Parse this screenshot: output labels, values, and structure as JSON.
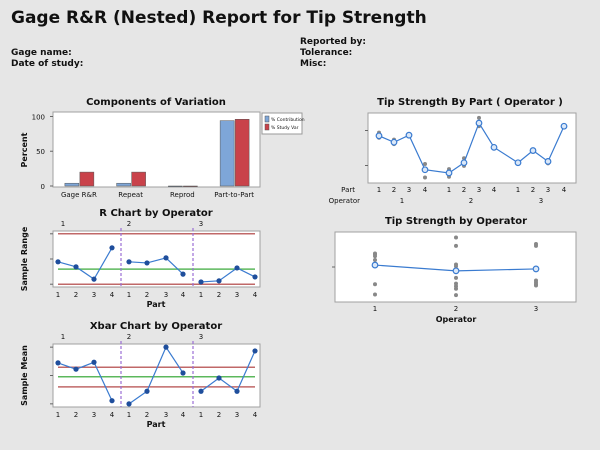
{
  "report": {
    "title": "Gage R&R (Nested) Report for Tip Strength",
    "gage_name_label": "Gage name:",
    "date_label": "Date of study:",
    "reported_by_label": "Reported by:",
    "tolerance_label": "Tolerance:",
    "misc_label": "Misc:"
  },
  "chart_data": [
    {
      "type": "bar",
      "title": "Components of Variation",
      "ylabel": "Percent",
      "categories": [
        "Gage R&R",
        "Repeat",
        "Reprod",
        "Part-to-Part"
      ],
      "series": [
        {
          "name": "% Contribution",
          "values": [
            4,
            4,
            0,
            94
          ],
          "color": "#7ea6d8"
        },
        {
          "name": "% Study Var",
          "values": [
            20,
            20,
            0,
            96
          ],
          "color": "#c9424a"
        }
      ],
      "yticks": [
        "0",
        "50",
        "100"
      ],
      "ylim": [
        0,
        105
      ],
      "legend": "right"
    },
    {
      "type": "line",
      "title": "Tip Strength By Part ( Operator )",
      "xlabel_part": "Part",
      "xlabel_operator": "Operator",
      "operators": [
        "1",
        "2",
        "3"
      ],
      "parts": [
        "1",
        "2",
        "3",
        "4"
      ],
      "means": [
        0.69,
        0.59,
        0.7,
        0.16,
        0.11,
        0.27,
        0.89,
        0.51,
        0.27,
        0.46,
        0.29,
        0.84
      ],
      "observations": [
        [
          0.74,
          0.66,
          0.69
        ],
        [
          0.63,
          0.56,
          0.59
        ],
        [
          0.7,
          0.71,
          0.69
        ],
        [
          0.25,
          0.04,
          0.17
        ],
        [
          0.17,
          0.05,
          0.13
        ],
        [
          0.34,
          0.22,
          0.27
        ],
        [
          0.97,
          0.84,
          0.89
        ],
        [
          0.51,
          0.53,
          0.49
        ],
        [
          0.27,
          0.27,
          0.28
        ],
        [
          0.46,
          0.47,
          0.45
        ],
        [
          0.3,
          0.26,
          0.31
        ],
        [
          0.84,
          0.85,
          0.83
        ]
      ],
      "ylim": [
        0,
        1
      ]
    },
    {
      "type": "line",
      "title": "R Chart by Operator",
      "ylabel": "Sample Range",
      "xlabel": "Part",
      "operators": [
        "1",
        "2",
        "3"
      ],
      "parts": [
        "1",
        "2",
        "3",
        "4"
      ],
      "values": [
        0.45,
        0.36,
        0.14,
        0.7,
        0.45,
        0.43,
        0.52,
        0.23,
        0.09,
        0.11,
        0.34,
        0.18
      ],
      "ucl": 0.95,
      "center": 0.32,
      "lcl": 0.05,
      "ylim": [
        0,
        1
      ]
    },
    {
      "type": "line",
      "title": "Tip Strength by Operator",
      "xlabel": "Operator",
      "categories": [
        "1",
        "2",
        "3"
      ],
      "means": [
        0.53,
        0.44,
        0.47
      ],
      "observations": [
        [
          0.71,
          0.7,
          0.67,
          0.61,
          0.53,
          0.23,
          0.07
        ],
        [
          0.96,
          0.83,
          0.54,
          0.51,
          0.33,
          0.24,
          0.2,
          0.16,
          0.06
        ],
        [
          0.86,
          0.83,
          0.29,
          0.26,
          0.23,
          0.21
        ]
      ],
      "ylim": [
        0,
        1
      ]
    },
    {
      "type": "line",
      "title": "Xbar Chart by Operator",
      "ylabel": "Sample Mean",
      "xlabel": "Part",
      "operators": [
        "1",
        "2",
        "3"
      ],
      "parts": [
        "1",
        "2",
        "3",
        "4"
      ],
      "values": [
        0.7,
        0.6,
        0.71,
        0.1,
        0.05,
        0.25,
        0.95,
        0.54,
        0.25,
        0.46,
        0.25,
        0.89
      ],
      "ucl": 0.63,
      "center": 0.48,
      "lcl": 0.32,
      "ylim": [
        0,
        1
      ]
    }
  ],
  "colors": {
    "line": "#3a7bd0",
    "point": "#1f4e9c",
    "obs": "#888888",
    "limit": "#c06868",
    "center": "#5cb85c",
    "divider": "#9b6fd6"
  }
}
